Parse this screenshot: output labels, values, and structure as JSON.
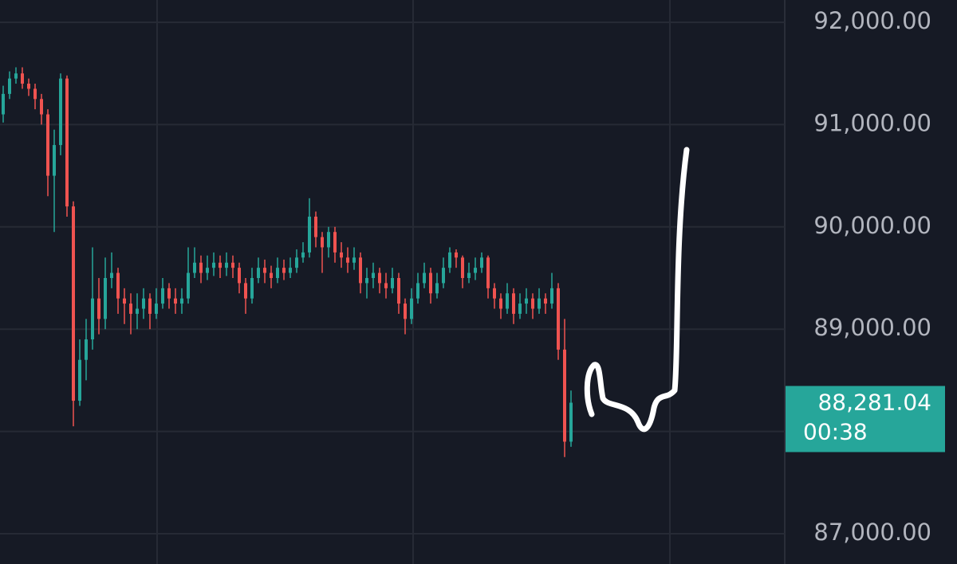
{
  "chart_data": {
    "type": "candlestick",
    "ylim": [
      86704,
      92218
    ],
    "yticks": [
      {
        "value": 87000,
        "label": "87,000.00"
      },
      {
        "value": 88000,
        "label": "88,000.00"
      },
      {
        "value": 89000,
        "label": "89,000.00"
      },
      {
        "value": 90000,
        "label": "90,000.00"
      },
      {
        "value": 91000,
        "label": "91,000.00"
      },
      {
        "value": 92000,
        "label": "92,000.00"
      }
    ],
    "grid": true,
    "up_color": "#26a69a",
    "down_color": "#ef5350",
    "last_label": "88,281.04",
    "countdown": "00:38",
    "ohlc": [
      [
        91100,
        91380,
        91020,
        91300
      ],
      [
        91300,
        91520,
        91250,
        91450
      ],
      [
        91450,
        91560,
        91400,
        91500
      ],
      [
        91500,
        91560,
        91350,
        91400
      ],
      [
        91400,
        91450,
        91280,
        91350
      ],
      [
        91350,
        91400,
        91150,
        91250
      ],
      [
        91250,
        91300,
        91000,
        91100
      ],
      [
        91100,
        91150,
        90300,
        90500
      ],
      [
        90500,
        90950,
        89950,
        90800
      ],
      [
        90800,
        91500,
        90700,
        91450
      ],
      [
        91450,
        91480,
        90100,
        90200
      ],
      [
        90200,
        90250,
        88050,
        88300
      ],
      [
        88300,
        88900,
        88250,
        88700
      ],
      [
        88700,
        89100,
        88500,
        88900
      ],
      [
        88900,
        89800,
        88800,
        89300
      ],
      [
        89300,
        89500,
        88950,
        89100
      ],
      [
        89100,
        89700,
        89000,
        89500
      ],
      [
        89500,
        89750,
        89400,
        89550
      ],
      [
        89550,
        89600,
        89150,
        89300
      ],
      [
        89300,
        89400,
        89050,
        89250
      ],
      [
        89250,
        89350,
        88950,
        89150
      ],
      [
        89150,
        89350,
        89000,
        89200
      ],
      [
        89200,
        89400,
        89100,
        89300
      ],
      [
        89300,
        89350,
        89000,
        89150
      ],
      [
        89150,
        89400,
        89100,
        89250
      ],
      [
        89250,
        89500,
        89200,
        89400
      ],
      [
        89400,
        89450,
        89200,
        89300
      ],
      [
        89300,
        89400,
        89150,
        89250
      ],
      [
        89250,
        89400,
        89150,
        89300
      ],
      [
        89300,
        89800,
        89250,
        89550
      ],
      [
        89550,
        89800,
        89500,
        89650
      ],
      [
        89650,
        89720,
        89450,
        89550
      ],
      [
        89550,
        89720,
        89480,
        89600
      ],
      [
        89600,
        89750,
        89520,
        89650
      ],
      [
        89650,
        89720,
        89500,
        89600
      ],
      [
        89600,
        89750,
        89520,
        89650
      ],
      [
        89650,
        89720,
        89500,
        89600
      ],
      [
        89600,
        89650,
        89350,
        89450
      ],
      [
        89450,
        89500,
        89150,
        89300
      ],
      [
        89300,
        89600,
        89250,
        89500
      ],
      [
        89500,
        89700,
        89450,
        89600
      ],
      [
        89600,
        89680,
        89450,
        89550
      ],
      [
        89550,
        89620,
        89400,
        89500
      ],
      [
        89500,
        89700,
        89450,
        89600
      ],
      [
        89600,
        89680,
        89480,
        89550
      ],
      [
        89550,
        89700,
        89500,
        89600
      ],
      [
        89600,
        89780,
        89550,
        89700
      ],
      [
        89700,
        89850,
        89650,
        89750
      ],
      [
        89750,
        90280,
        89700,
        90100
      ],
      [
        90100,
        90150,
        89800,
        89900
      ],
      [
        89900,
        89950,
        89550,
        89800
      ],
      [
        89800,
        90000,
        89700,
        89950
      ],
      [
        89950,
        90000,
        89650,
        89750
      ],
      [
        89750,
        89850,
        89600,
        89700
      ],
      [
        89700,
        89800,
        89550,
        89650
      ],
      [
        89650,
        89800,
        89580,
        89700
      ],
      [
        89700,
        89750,
        89350,
        89450
      ],
      [
        89450,
        89600,
        89300,
        89500
      ],
      [
        89500,
        89650,
        89400,
        89550
      ],
      [
        89550,
        89600,
        89350,
        89450
      ],
      [
        89450,
        89550,
        89300,
        89400
      ],
      [
        89400,
        89600,
        89350,
        89500
      ],
      [
        89500,
        89550,
        89150,
        89250
      ],
      [
        89250,
        89300,
        88950,
        89100
      ],
      [
        89100,
        89400,
        89050,
        89300
      ],
      [
        89300,
        89550,
        89250,
        89450
      ],
      [
        89450,
        89650,
        89400,
        89550
      ],
      [
        89550,
        89600,
        89250,
        89350
      ],
      [
        89350,
        89550,
        89300,
        89450
      ],
      [
        89450,
        89700,
        89400,
        89600
      ],
      [
        89600,
        89800,
        89550,
        89750
      ],
      [
        89750,
        89780,
        89600,
        89700
      ],
      [
        89700,
        89720,
        89400,
        89500
      ],
      [
        89500,
        89650,
        89450,
        89550
      ],
      [
        89550,
        89700,
        89480,
        89600
      ],
      [
        89600,
        89750,
        89550,
        89700
      ],
      [
        89700,
        89720,
        89300,
        89400
      ],
      [
        89400,
        89450,
        89200,
        89300
      ],
      [
        89300,
        89350,
        89100,
        89200
      ],
      [
        89200,
        89450,
        89150,
        89350
      ],
      [
        89350,
        89400,
        89050,
        89150
      ],
      [
        89150,
        89350,
        89100,
        89250
      ],
      [
        89250,
        89400,
        89150,
        89300
      ],
      [
        89300,
        89350,
        89100,
        89200
      ],
      [
        89200,
        89400,
        89150,
        89300
      ],
      [
        89300,
        89350,
        89150,
        89250
      ],
      [
        89250,
        89550,
        89200,
        89400
      ],
      [
        89400,
        89450,
        88700,
        88800
      ],
      [
        88800,
        89100,
        87750,
        87900
      ],
      [
        87900,
        88400,
        87850,
        88281.04
      ]
    ]
  }
}
